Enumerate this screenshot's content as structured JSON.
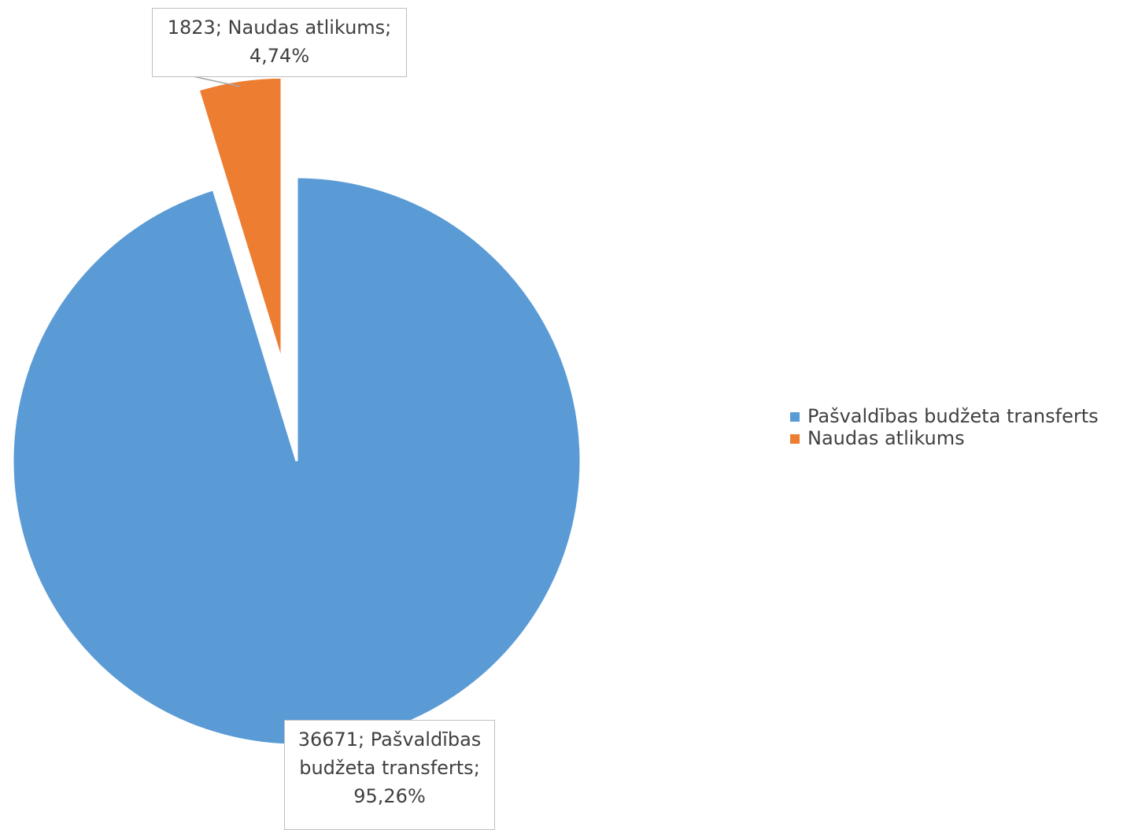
{
  "chart_data": {
    "type": "pie",
    "categories": [
      "Pašvaldības budžeta transferts",
      "Naudas atlikums"
    ],
    "values": [
      36671,
      1823
    ],
    "value_labels": [
      "36671; Pašvaldības budžeta transferts; 95,26%",
      "1823; Naudas atlikums; 4,74%"
    ],
    "colors": [
      "#5b9bd5",
      "#ed7d31"
    ],
    "exploded": [
      false,
      true
    ],
    "legend": "right"
  }
}
